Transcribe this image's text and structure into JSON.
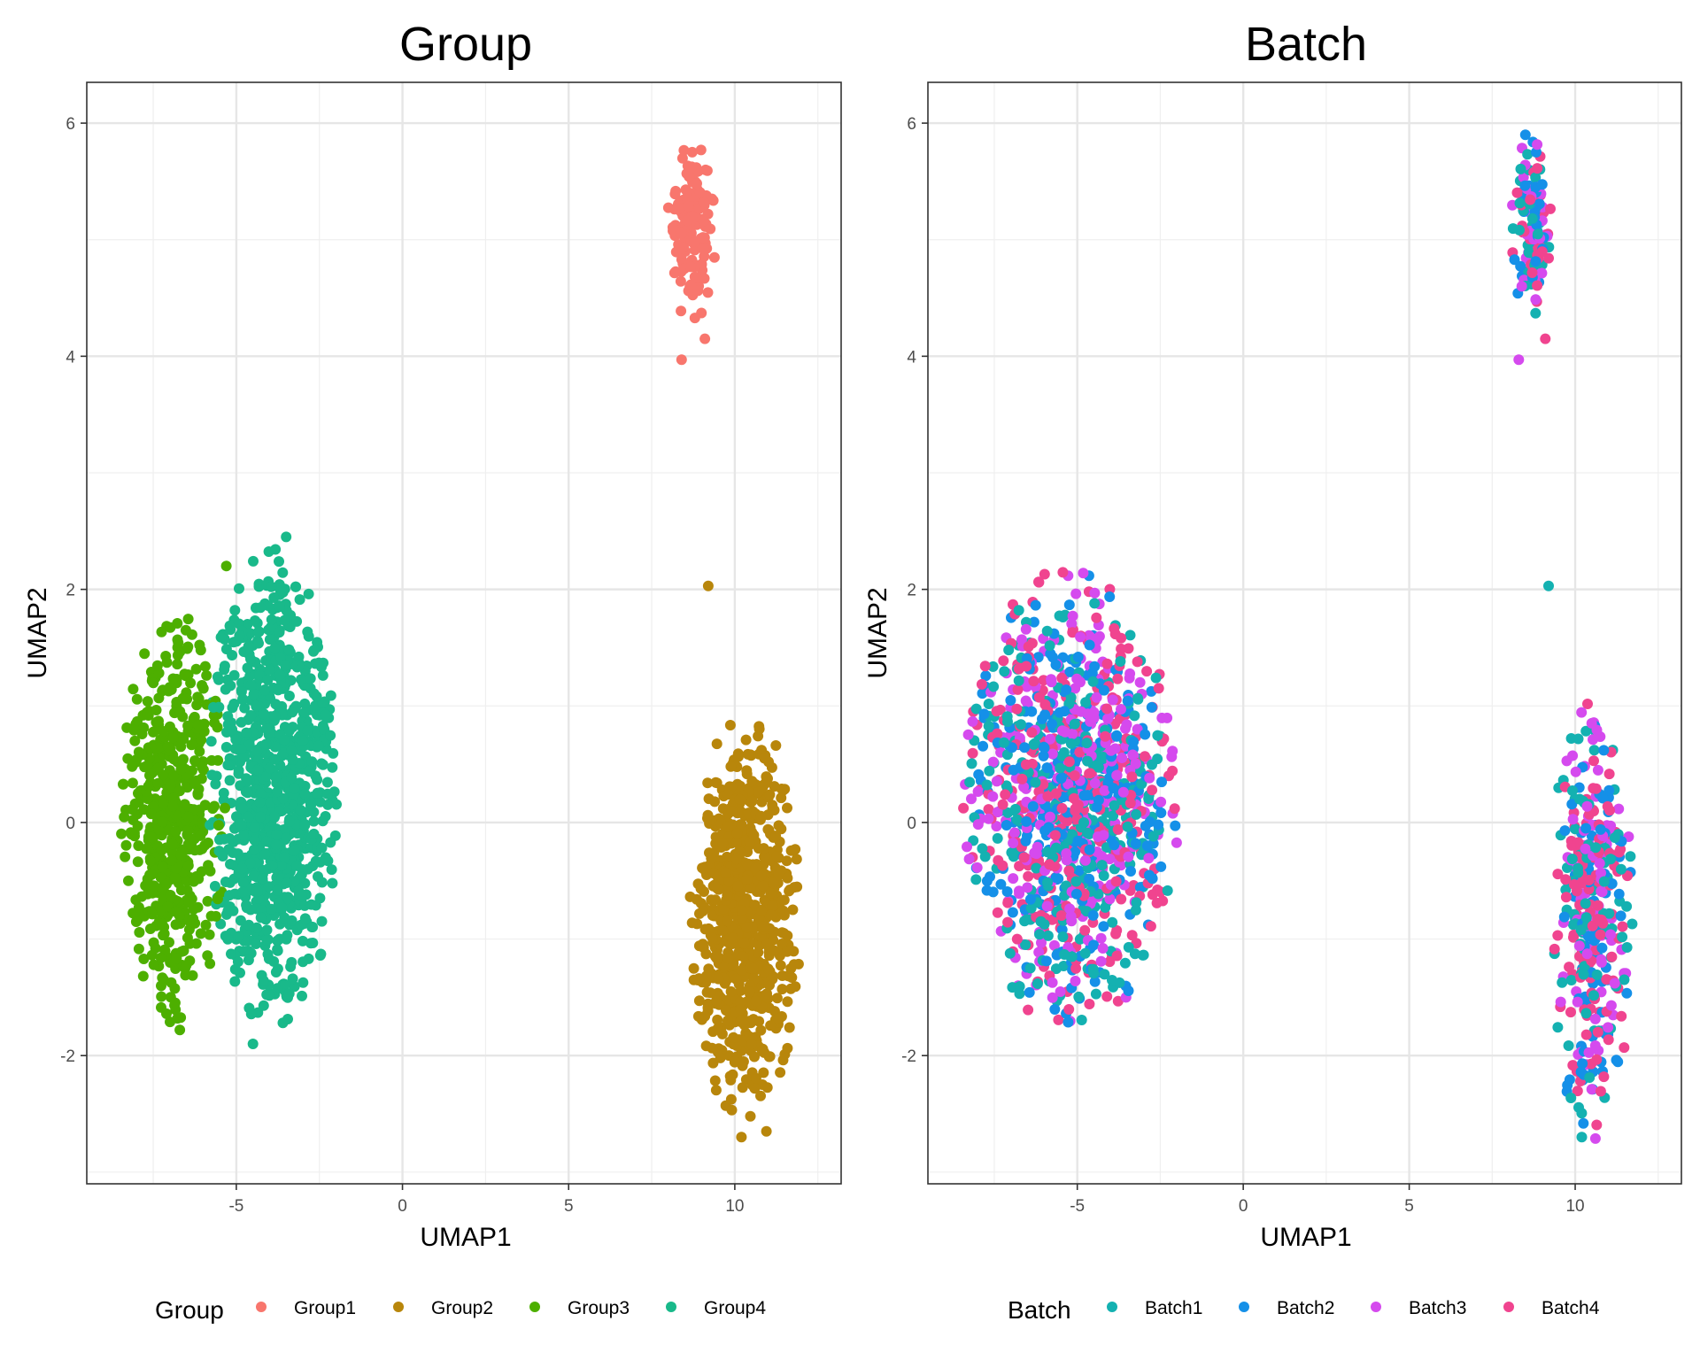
{
  "chart_data": [
    {
      "type": "scatter",
      "title": "Group",
      "xlabel": "UMAP1",
      "ylabel": "UMAP2",
      "xlim": [
        -9.5,
        13.2
      ],
      "ylim": [
        -3.1,
        6.35
      ],
      "xticks": [
        -5,
        0,
        5,
        10
      ],
      "xtick_labels": [
        "-5",
        "0",
        "5",
        "10"
      ],
      "yticks": [
        -2,
        0,
        2,
        4,
        6
      ],
      "ytick_labels": [
        "-2",
        "0",
        "2",
        "4",
        "6"
      ],
      "grid": true,
      "legend": {
        "title": "Group",
        "position": "bottom",
        "entries": [
          "Group1",
          "Group2",
          "Group3",
          "Group4"
        ]
      },
      "colors": [
        "#F8766D",
        "#B8860B",
        "#4DAF00",
        "#19B98A"
      ],
      "series": [
        {
          "name": "Group1",
          "clusters": [
            {
              "cx": 8.7,
              "cy": 5.1,
              "sx": 0.35,
              "sy": 0.38,
              "n": 150
            }
          ],
          "extra_points": [
            [
              8.4,
              3.97
            ],
            [
              9.1,
              4.15
            ]
          ]
        },
        {
          "name": "Group2",
          "clusters": [
            {
              "cx": 10.3,
              "cy": -0.8,
              "sx": 0.8,
              "sy": 0.85,
              "n": 700
            }
          ],
          "extra_points": [
            [
              9.2,
              2.03
            ],
            [
              10.2,
              -2.7
            ],
            [
              10.95,
              -2.65
            ]
          ]
        },
        {
          "name": "Group3",
          "clusters": [
            {
              "cx": -6.9,
              "cy": 0.05,
              "sx": 0.75,
              "sy": 0.85,
              "n": 550
            }
          ],
          "extra_points": [
            [
              -5.3,
              2.2
            ],
            [
              -6.7,
              -1.78
            ]
          ]
        },
        {
          "name": "Group4",
          "clusters": [
            {
              "cx": -3.9,
              "cy": 0.3,
              "sx": 0.95,
              "sy": 1.0,
              "n": 900
            }
          ],
          "extra_points": [
            [
              -3.5,
              2.45
            ],
            [
              -4.5,
              -1.9
            ]
          ]
        }
      ]
    },
    {
      "type": "scatter",
      "title": "Batch",
      "xlabel": "UMAP1",
      "ylabel": "UMAP2",
      "xlim": [
        -9.5,
        13.2
      ],
      "ylim": [
        -3.1,
        6.35
      ],
      "xticks": [
        -5,
        0,
        5,
        10
      ],
      "xtick_labels": [
        "-5",
        "0",
        "5",
        "10"
      ],
      "yticks": [
        -2,
        0,
        2,
        4,
        6
      ],
      "ytick_labels": [
        "-2",
        "0",
        "2",
        "4",
        "6"
      ],
      "grid": true,
      "legend": {
        "title": "Batch",
        "position": "bottom",
        "entries": [
          "Batch1",
          "Batch2",
          "Batch3",
          "Batch4"
        ]
      },
      "colors": [
        "#14B1B1",
        "#1590E8",
        "#D54AEE",
        "#F0448F"
      ],
      "series": [
        {
          "name": "Batch1",
          "clusters": [
            {
              "cx": -5.2,
              "cy": 0.2,
              "sx": 1.55,
              "sy": 0.95,
              "n": 300
            },
            {
              "cx": 10.5,
              "cy": -0.85,
              "sx": 0.6,
              "sy": 0.9,
              "n": 90
            },
            {
              "cx": 8.7,
              "cy": 5.1,
              "sx": 0.3,
              "sy": 0.38,
              "n": 30
            }
          ],
          "extra_points": [
            [
              9.2,
              2.03
            ],
            [
              10.2,
              -2.7
            ]
          ]
        },
        {
          "name": "Batch2",
          "clusters": [
            {
              "cx": -5.2,
              "cy": 0.2,
              "sx": 1.55,
              "sy": 0.95,
              "n": 300
            },
            {
              "cx": 10.5,
              "cy": -0.85,
              "sx": 0.6,
              "sy": 0.9,
              "n": 90
            },
            {
              "cx": 8.7,
              "cy": 5.1,
              "sx": 0.3,
              "sy": 0.38,
              "n": 30
            }
          ],
          "extra_points": [
            [
              8.5,
              5.9
            ]
          ]
        },
        {
          "name": "Batch3",
          "clusters": [
            {
              "cx": -5.2,
              "cy": 0.2,
              "sx": 1.55,
              "sy": 0.95,
              "n": 300
            },
            {
              "cx": 10.5,
              "cy": -0.85,
              "sx": 0.6,
              "sy": 0.9,
              "n": 90
            },
            {
              "cx": 8.7,
              "cy": 5.1,
              "sx": 0.3,
              "sy": 0.38,
              "n": 30
            }
          ],
          "extra_points": [
            [
              8.3,
              3.97
            ]
          ]
        },
        {
          "name": "Batch4",
          "clusters": [
            {
              "cx": -5.2,
              "cy": 0.2,
              "sx": 1.55,
              "sy": 0.95,
              "n": 330
            },
            {
              "cx": 10.5,
              "cy": -0.85,
              "sx": 0.6,
              "sy": 0.9,
              "n": 110
            },
            {
              "cx": 8.7,
              "cy": 5.1,
              "sx": 0.3,
              "sy": 0.38,
              "n": 30
            }
          ],
          "extra_points": [
            [
              9.1,
              4.15
            ]
          ]
        }
      ]
    }
  ]
}
